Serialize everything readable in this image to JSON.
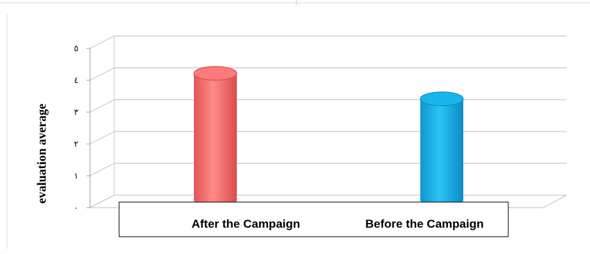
{
  "chart_data": {
    "type": "bar",
    "style": "3d-cylinder",
    "ylabel": "evaluation average",
    "xlabel": "",
    "title": "",
    "ylim": [
      0,
      5
    ],
    "y_tick_labels": [
      "٠",
      "١",
      "٢",
      "٣",
      "٤",
      "٥"
    ],
    "categories": [
      "After the Campaign",
      "Before the Campaign"
    ],
    "values": [
      4.0,
      3.2
    ],
    "colors": [
      "#ff7b7b",
      "#19b5ec"
    ],
    "grid": true,
    "legend": "none"
  }
}
